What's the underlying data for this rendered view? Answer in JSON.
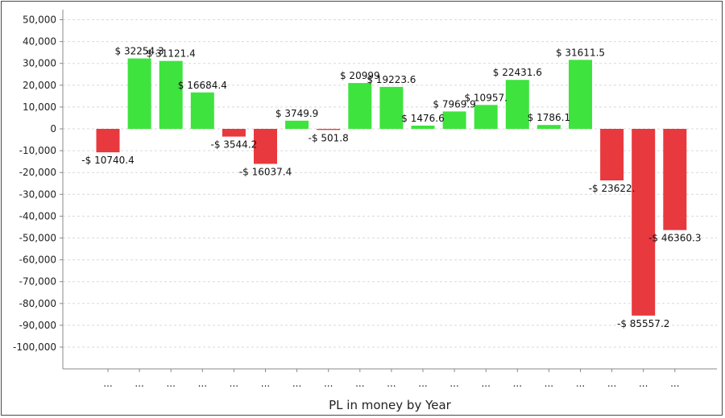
{
  "chart_data": {
    "type": "bar",
    "xlabel": "PL in money by Year",
    "ylabel": "",
    "ylim": [
      -110000,
      55000
    ],
    "yticks": [
      50000,
      40000,
      30000,
      20000,
      10000,
      0,
      -10000,
      -20000,
      -30000,
      -40000,
      -50000,
      -60000,
      -70000,
      -80000,
      -90000,
      -100000
    ],
    "ytick_labels": [
      "50,000",
      "40,000",
      "30,000",
      "20,000",
      "10,000",
      "0",
      "-10,000",
      "-20,000",
      "-30,000",
      "-40,000",
      "-50,000",
      "-60,000",
      "-70,000",
      "-80,000",
      "-90,000",
      "-100,000"
    ],
    "grid": true,
    "categories": [
      "...",
      "...",
      "...",
      "...",
      "...",
      "...",
      "...",
      "...",
      "...",
      "...",
      "...",
      "...",
      "...",
      "...",
      "...",
      "...",
      "...",
      "...",
      "..."
    ],
    "values": [
      -10740.4,
      32254.3,
      31121.4,
      16684.4,
      -3544.2,
      -16037.4,
      3749.9,
      -501.8,
      20999,
      19223.6,
      1476.6,
      7969.9,
      10957.1,
      22431.6,
      1786.1,
      31611.5,
      -23622.1,
      -85557.2,
      -46360.3
    ],
    "value_labels": [
      "-$ 10740.4",
      "$ 32254.3",
      "$ 31121.4",
      "$ 16684.4",
      "-$ 3544.2",
      "-$ 16037.4",
      "$ 3749.9",
      "-$ 501.8",
      "$ 20999",
      "$ 19223.6",
      "$ 1476.6",
      "$ 7969.9",
      "$ 10957.",
      "$ 22431.6",
      "$ 1786.1",
      "$ 31611.5",
      "-$ 23622.",
      "-$ 85557.2",
      "-$ 46360.3"
    ],
    "colors": {
      "positive": "#3ee33e",
      "negative": "#e8393e",
      "grid": "#d9d9d9",
      "axis": "#888888"
    }
  }
}
